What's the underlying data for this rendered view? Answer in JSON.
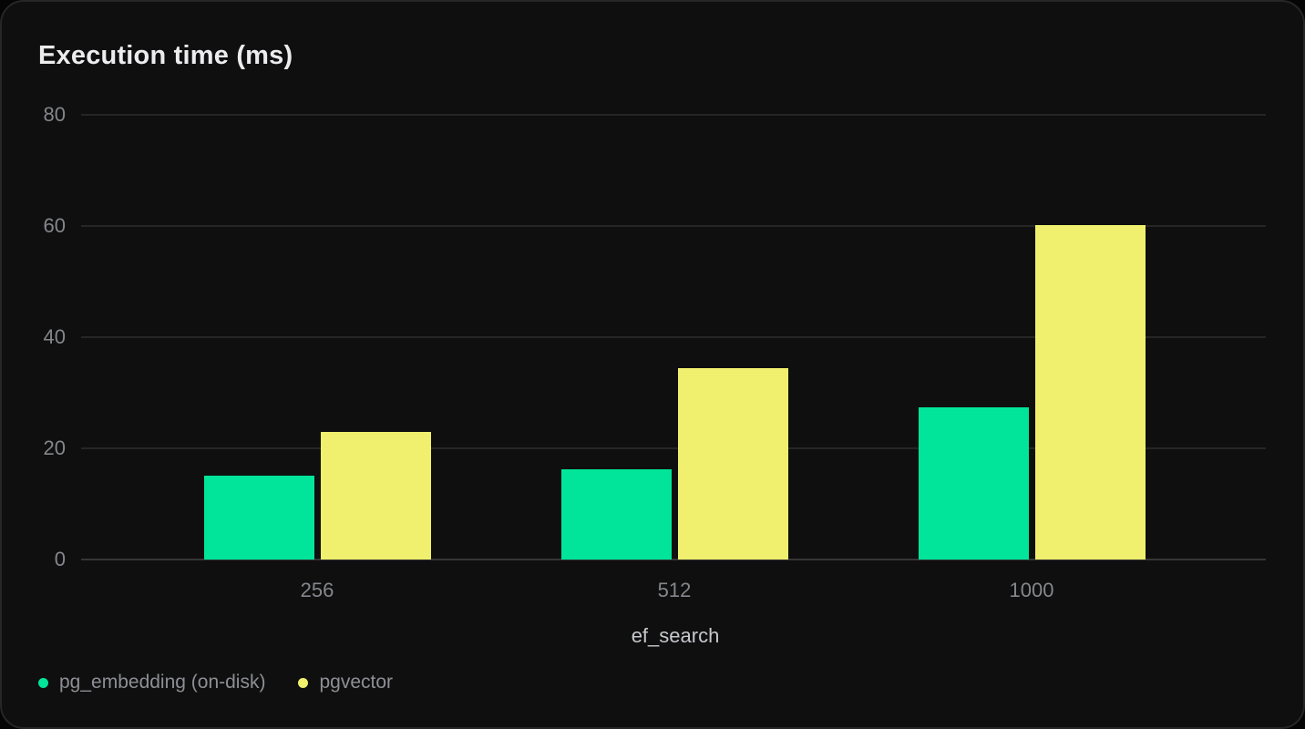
{
  "chart_data": {
    "type": "bar",
    "title": "Execution time (ms)",
    "xlabel": "ef_search",
    "ylabel": "",
    "categories": [
      "256",
      "512",
      "1000"
    ],
    "series": [
      {
        "name": "pg_embedding (on-disk)",
        "color": "#00e599",
        "values": [
          15.1,
          16.2,
          27.3
        ]
      },
      {
        "name": "pgvector",
        "color": "#f0f06e",
        "values": [
          22.9,
          34.4,
          60.2
        ]
      }
    ],
    "ylim": [
      0,
      80
    ],
    "yticks": [
      0,
      20,
      40,
      60,
      80
    ],
    "grid": "horizontal",
    "legend_position": "bottom-left",
    "colors": {
      "card_background": "#0e0f0e",
      "card_border": "#262626",
      "gridline": "#262626",
      "title_text": "#ececee",
      "tick_text": "#86878c",
      "axis_label_text": "#c7c8cd",
      "legend_text": "#8e8f95"
    }
  }
}
